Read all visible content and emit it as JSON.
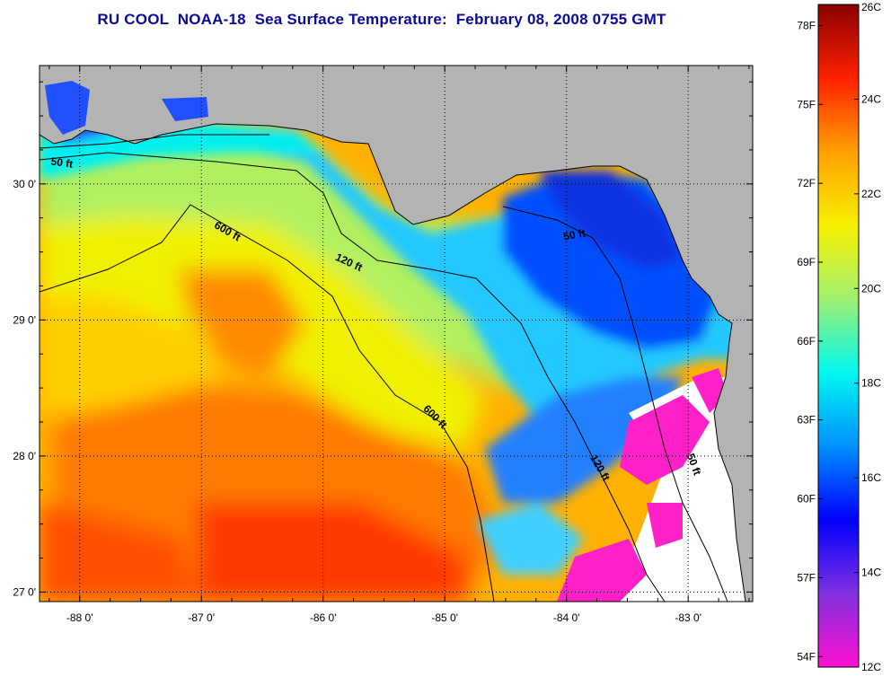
{
  "title": "RU COOL  NOAA-18  Sea Surface Temperature:  February 08, 2008 0755 GMT",
  "map": {
    "lon_range": [
      -88.33,
      -82.47
    ],
    "lat_range": [
      26.93,
      30.87
    ],
    "lon_ticks": [
      {
        "value": -88,
        "label": "-88 0'"
      },
      {
        "value": -87,
        "label": "-87 0'"
      },
      {
        "value": -86,
        "label": "-86 0'"
      },
      {
        "value": -85,
        "label": "-85 0'"
      },
      {
        "value": -84,
        "label": "-84 0'"
      },
      {
        "value": -83,
        "label": "-83 0'"
      }
    ],
    "lat_ticks": [
      {
        "value": 30,
        "label": "30 0'"
      },
      {
        "value": 29,
        "label": "29 0'"
      },
      {
        "value": 28,
        "label": "28 0'"
      },
      {
        "value": 27,
        "label": "27 0'"
      }
    ],
    "grid": "dotted",
    "land_color": "#b3b3b3",
    "contour_labels": [
      {
        "text": "50 ft",
        "lon": -88.15,
        "lat": 30.13,
        "angle": 8
      },
      {
        "text": "600 ft",
        "lon": -86.8,
        "lat": 29.63,
        "angle": 30
      },
      {
        "text": "120 ft",
        "lon": -85.8,
        "lat": 29.4,
        "angle": 25
      },
      {
        "text": "50 ft",
        "lon": -83.93,
        "lat": 29.6,
        "angle": -10
      },
      {
        "text": "600 ft",
        "lon": -85.1,
        "lat": 28.27,
        "angle": 45
      },
      {
        "text": "120 ft",
        "lon": -83.75,
        "lat": 27.9,
        "angle": 60
      },
      {
        "text": "50 ft",
        "lon": -82.98,
        "lat": 27.93,
        "angle": 70
      }
    ]
  },
  "colorbar": {
    "c_min": 12,
    "c_max": 26,
    "celsius_ticks": [
      {
        "value": 26,
        "label": "26C"
      },
      {
        "value": 24,
        "label": "24C"
      },
      {
        "value": 22,
        "label": "22C"
      },
      {
        "value": 20,
        "label": "20C"
      },
      {
        "value": 18,
        "label": "18C"
      },
      {
        "value": 16,
        "label": "16C"
      },
      {
        "value": 14,
        "label": "14C"
      },
      {
        "value": 12,
        "label": "12C"
      }
    ],
    "fahrenheit_ticks": [
      {
        "value": 78,
        "label": "78F"
      },
      {
        "value": 75,
        "label": "75F"
      },
      {
        "value": 72,
        "label": "72F"
      },
      {
        "value": 69,
        "label": "69F"
      },
      {
        "value": 66,
        "label": "66F"
      },
      {
        "value": 63,
        "label": "63F"
      },
      {
        "value": 60,
        "label": "60F"
      },
      {
        "value": 57,
        "label": "57F"
      },
      {
        "value": 54,
        "label": "54F"
      }
    ],
    "colors": [
      "#ff10d0",
      "#8030e0",
      "#0000ff",
      "#0090ff",
      "#00f8f0",
      "#a0f070",
      "#f8f000",
      "#ffa000",
      "#ff2000",
      "#8a0000"
    ]
  }
}
